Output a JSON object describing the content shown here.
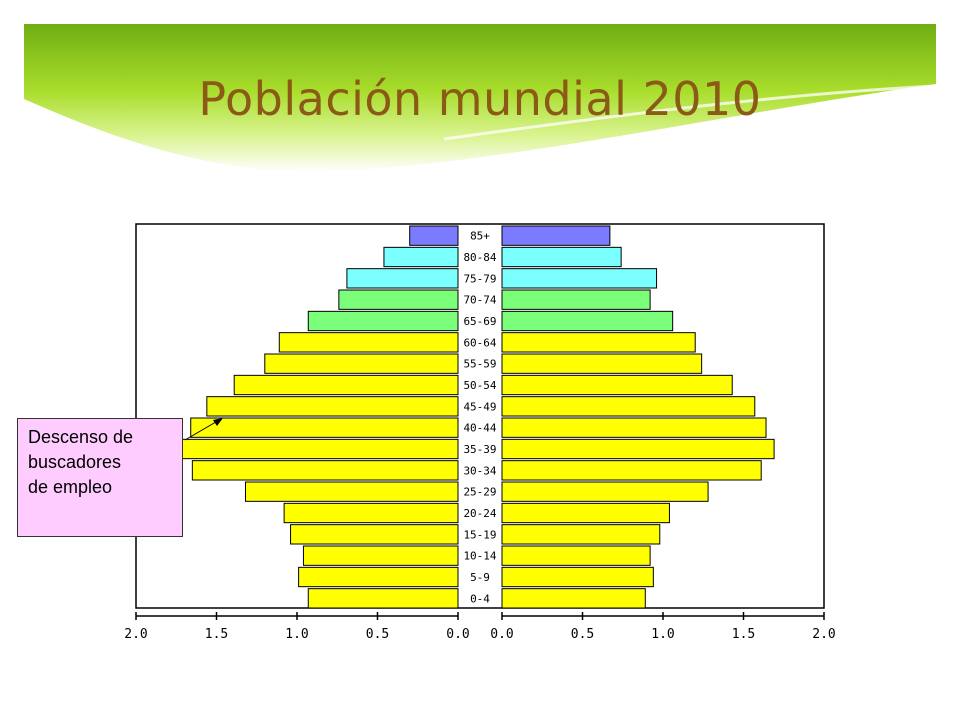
{
  "slide": {
    "title": "Población mundial 2010"
  },
  "callout": {
    "text": "Descenso de\nbuscadores\nde empleo"
  },
  "chart_data": {
    "type": "bar",
    "orientation": "horizontal",
    "layout": "population-pyramid",
    "categories": [
      "85+",
      "80-84",
      "75-79",
      "70-74",
      "65-69",
      "60-64",
      "55-59",
      "50-54",
      "45-49",
      "40-44",
      "35-39",
      "30-34",
      "25-29",
      "20-24",
      "15-19",
      "10-14",
      "5-9",
      "0-4"
    ],
    "series": [
      {
        "side": "left",
        "values": [
          0.3,
          0.46,
          0.69,
          0.74,
          0.93,
          1.11,
          1.2,
          1.39,
          1.56,
          1.66,
          1.72,
          1.65,
          1.32,
          1.08,
          1.04,
          0.96,
          0.99,
          0.93
        ]
      },
      {
        "side": "right",
        "values": [
          0.67,
          0.74,
          0.96,
          0.92,
          1.06,
          1.2,
          1.24,
          1.43,
          1.57,
          1.64,
          1.69,
          1.61,
          1.28,
          1.04,
          0.98,
          0.92,
          0.94,
          0.89
        ]
      }
    ],
    "bar_colors": [
      "#7b7bff",
      "#7bffff",
      "#7bffff",
      "#7bff7b",
      "#7bff7b",
      "#ffff00",
      "#ffff00",
      "#ffff00",
      "#ffff00",
      "#ffff00",
      "#ffff00",
      "#ffff00",
      "#ffff00",
      "#ffff00",
      "#ffff00",
      "#ffff00",
      "#ffff00",
      "#ffff00"
    ],
    "xlim": [
      0,
      2.0
    ],
    "x_ticks": [
      2.0,
      1.5,
      1.0,
      0.5,
      0.0
    ],
    "x_tick_labels_left": [
      "2.0",
      "1.5",
      "1.0",
      "0.5",
      "0.0"
    ],
    "x_tick_labels_right": [
      "0.0",
      "0.5",
      "1.0",
      "1.5",
      "2.0"
    ],
    "grid": false
  }
}
